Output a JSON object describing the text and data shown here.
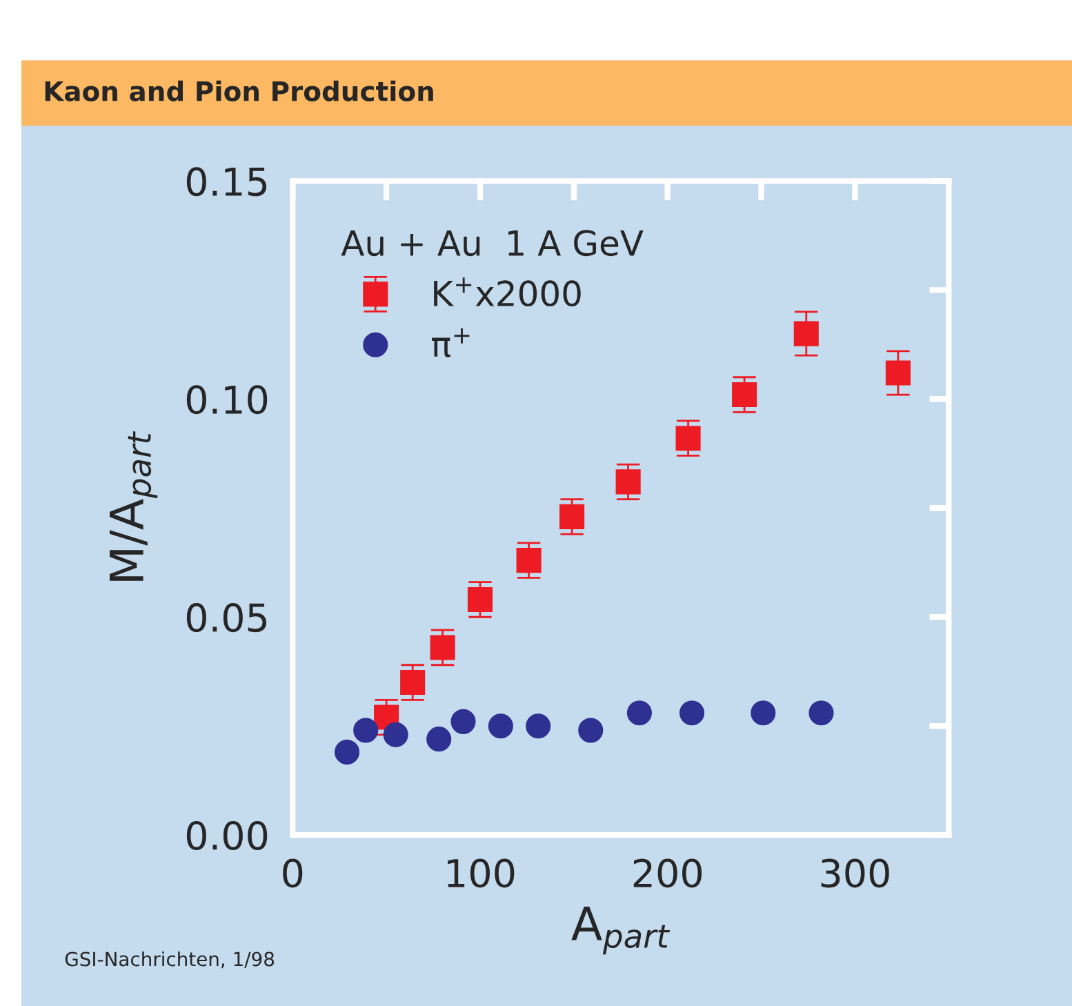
{
  "chart_data": {
    "type": "scatter",
    "title": "Kaon and Pion Production",
    "xlabel": "A$_{part}$",
    "ylabel": "M/A$_{part}$",
    "legend_title": "Au + Au  1 A GeV",
    "annotations": [
      "GSI-Nachrichten, 1/98"
    ],
    "series": [
      {
        "name": "K$^{+}$x2000",
        "color": "#ed1c24",
        "marker": "square",
        "x": [
          50,
          64,
          80,
          100,
          126,
          149,
          179,
          211,
          241,
          274,
          323
        ],
        "values": [
          0.027,
          0.035,
          0.043,
          0.054,
          0.063,
          0.073,
          0.081,
          0.091,
          0.101,
          0.115,
          0.106
        ],
        "errors": [
          0.004,
          0.004,
          0.004,
          0.004,
          0.004,
          0.004,
          0.004,
          0.004,
          0.004,
          0.005,
          0.005
        ]
      },
      {
        "name": "π$^{+}$",
        "color": "#2e3192",
        "marker": "circle",
        "x": [
          29,
          39,
          55,
          78,
          91,
          111,
          131,
          159,
          185,
          213,
          251,
          282
        ],
        "values": [
          0.019,
          0.024,
          0.023,
          0.022,
          0.026,
          0.025,
          0.025,
          0.024,
          0.028,
          0.028,
          0.028,
          0.028
        ]
      }
    ],
    "xlim": [
      0,
      350
    ],
    "ylim": [
      0,
      0.15
    ],
    "xticks": [
      0,
      {
        "value": 50,
        "label": null
      },
      100,
      {
        "value": 150,
        "label": null
      },
      200,
      {
        "value": 250,
        "label": null
      },
      300
    ],
    "yticks": [
      {
        "value": 0,
        "label": "0.00"
      },
      {
        "value": 0.025,
        "label": null
      },
      {
        "value": 0.05,
        "label": "0.05"
      },
      {
        "value": 0.075,
        "label": null
      },
      {
        "value": 0.1,
        "label": "0.10"
      },
      {
        "value": 0.125,
        "label": null
      },
      {
        "value": 0.15,
        "label": "0.15"
      }
    ],
    "legend": "top left",
    "grid": false
  }
}
